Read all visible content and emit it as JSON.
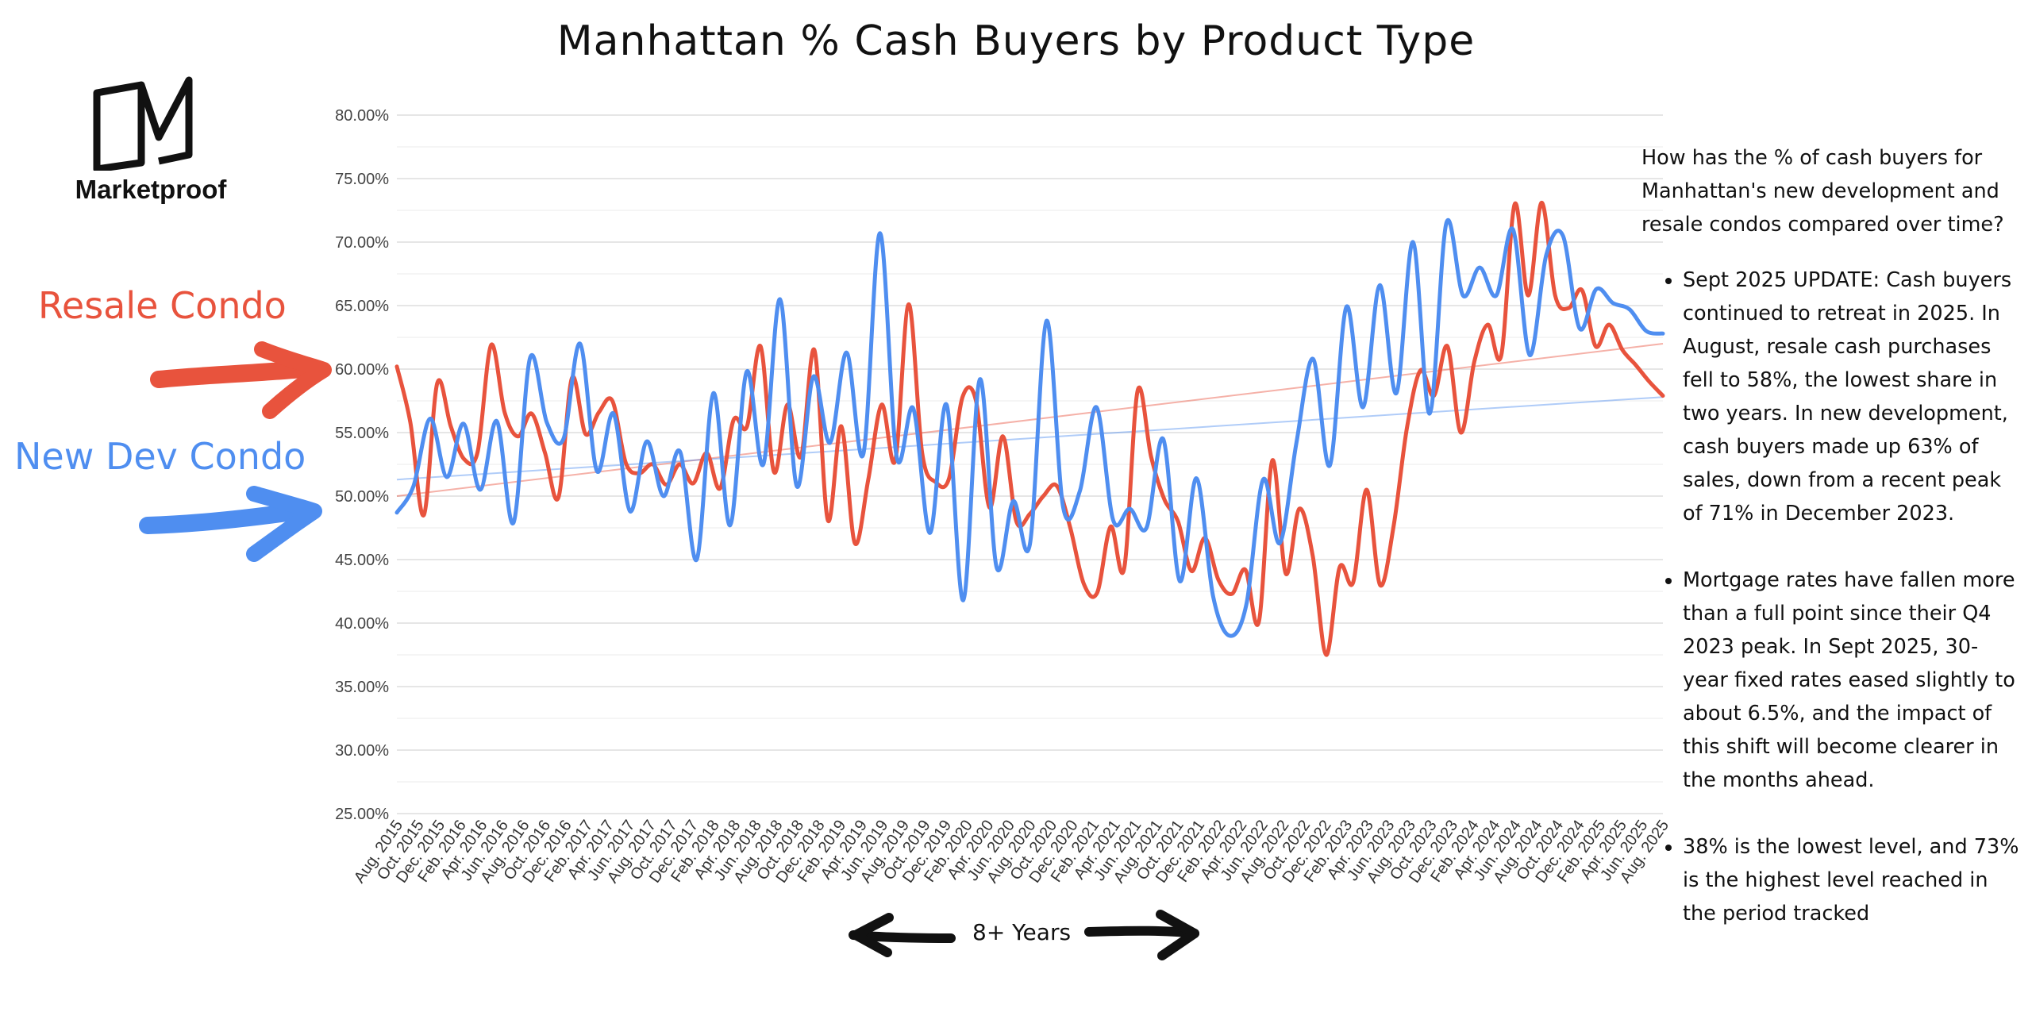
{
  "title": "Manhattan % Cash Buyers by Product Type",
  "logo": {
    "wordmark": "Marketproof"
  },
  "side_labels": {
    "resale": "Resale Condo",
    "new_dev": "New Dev Condo"
  },
  "bottom_label": "8+ Years",
  "notes": {
    "question": "How has the % of cash buyers for Manhattan's new development and resale condos compared over time?",
    "bullets": [
      "Sept 2025 UPDATE: Cash buyers continued to retreat in 2025. In August, resale cash purchases fell to 58%, the lowest share in two years. In new development, cash buyers made up 63% of sales, down from a recent peak of 71% in December 2023.",
      "Mortgage rates have fallen more than a full point since their Q4 2023 peak. In Sept 2025, 30-year fixed rates eased slightly to about 6.5%, and the impact of this shift will become clearer in the months ahead.",
      "38% is the lowest level, and 73% is the highest level reached in the period tracked"
    ]
  },
  "colors": {
    "resale": "#e8533d",
    "new_dev": "#4f8ef0",
    "grid": "#e3e3e3",
    "text": "#111111"
  },
  "chart_data": {
    "type": "line",
    "title": "Manhattan % Cash Buyers by Product Type",
    "xlabel": "",
    "ylabel": "",
    "ylim": [
      25,
      80
    ],
    "y_ticks": [
      25,
      30,
      35,
      40,
      45,
      50,
      55,
      60,
      65,
      70,
      75,
      80
    ],
    "y_tick_labels": [
      "25.00%",
      "30.00%",
      "35.00%",
      "40.00%",
      "45.00%",
      "50.00%",
      "55.00%",
      "60.00%",
      "65.00%",
      "70.00%",
      "75.00%",
      "80.00%"
    ],
    "x_tick_labels": [
      "Aug. 2015",
      "Oct. 2015",
      "Dec. 2015",
      "Feb. 2016",
      "Apr. 2016",
      "Jun. 2016",
      "Aug. 2016",
      "Oct. 2016",
      "Dec. 2016",
      "Feb. 2017",
      "Apr. 2017",
      "Jun. 2017",
      "Aug. 2017",
      "Oct. 2017",
      "Dec. 2017",
      "Feb. 2018",
      "Apr. 2018",
      "Jun. 2018",
      "Aug. 2018",
      "Oct. 2018",
      "Dec. 2018",
      "Feb. 2019",
      "Apr. 2019",
      "Jun. 2019",
      "Aug. 2019",
      "Oct. 2019",
      "Dec. 2019",
      "Feb. 2020",
      "Apr. 2020",
      "Jun. 2020",
      "Aug. 2020",
      "Oct. 2020",
      "Dec. 2020",
      "Feb. 2021",
      "Apr. 2021",
      "Jun. 2021",
      "Aug. 2021",
      "Oct. 2021",
      "Dec. 2021",
      "Feb. 2022",
      "Apr. 2022",
      "Jun. 2022",
      "Aug. 2022",
      "Oct. 2022",
      "Dec. 2022",
      "Feb. 2023",
      "Apr. 2023",
      "Jun. 2023",
      "Aug. 2023",
      "Oct. 2023",
      "Dec. 2023",
      "Feb. 2024",
      "Apr. 2024",
      "Jun. 2024",
      "Aug. 2024",
      "Oct. 2024",
      "Dec. 2024",
      "Feb. 2025",
      "Apr. 2025",
      "Jun. 2025",
      "Aug. 2025"
    ],
    "grid": true,
    "legend": "none",
    "series": [
      {
        "name": "Resale Condo",
        "color": "#e8533d",
        "values": [
          60.2,
          55.8,
          48.5,
          58.9,
          55.5,
          52.9,
          53.5,
          61.9,
          56.6,
          54.7,
          56.5,
          53.4,
          49.9,
          59.3,
          54.9,
          56.6,
          57.5,
          52.6,
          51.8,
          52.5,
          50.9,
          52.5,
          51.0,
          53.4,
          50.6,
          56.0,
          55.5,
          61.8,
          51.9,
          57.2,
          53.1,
          61.5,
          48.1,
          55.5,
          46.3,
          51.3,
          57.2,
          52.8,
          65.1,
          53.4,
          51.1,
          51.4,
          57.8,
          57.5,
          49.1,
          54.7,
          48.0,
          48.6,
          50.0,
          50.8,
          47.5,
          43.1,
          42.4,
          47.6,
          44.3,
          58.3,
          53.1,
          49.7,
          48.0,
          44.1,
          46.7,
          43.4,
          42.3,
          44.2,
          40.1,
          52.8,
          43.9,
          49.0,
          45.3,
          37.5,
          44.4,
          43.2,
          50.5,
          43.0,
          47.6,
          55.4,
          59.9,
          57.9,
          61.8,
          55.0,
          60.6,
          63.5,
          61.1,
          73.0,
          65.8,
          73.1,
          65.8,
          64.8,
          66.2,
          61.8,
          63.5,
          61.5,
          60.3,
          59.0,
          57.9
        ]
      },
      {
        "name": "New Dev Condo",
        "color": "#4f8ef0",
        "values": [
          48.7,
          50.8,
          56.1,
          51.5,
          55.7,
          50.5,
          55.9,
          47.9,
          60.9,
          55.8,
          54.5,
          62.0,
          52.0,
          56.5,
          48.8,
          54.3,
          50.0,
          53.5,
          45.0,
          58.1,
          47.7,
          59.8,
          52.5,
          65.5,
          50.8,
          59.4,
          54.2,
          61.3,
          53.3,
          70.7,
          53.1,
          56.9,
          47.1,
          57.2,
          41.8,
          59.2,
          44.4,
          49.6,
          46.2,
          63.8,
          49.1,
          50.4,
          57.0,
          48.1,
          49.0,
          47.5,
          54.5,
          43.3,
          51.4,
          42.1,
          39.0,
          41.5,
          51.3,
          46.3,
          54.2,
          60.8,
          52.4,
          64.9,
          57.0,
          66.6,
          58.1,
          70.0,
          56.5,
          71.5,
          65.8,
          68.0,
          65.8,
          71.0,
          61.1,
          69.0,
          70.5,
          63.2,
          66.3,
          65.2,
          64.7,
          63.0,
          62.8
        ]
      }
    ],
    "trendlines": [
      {
        "series": "Resale Condo",
        "start": 50.0,
        "end": 62.0
      },
      {
        "series": "New Dev Condo",
        "start": 51.3,
        "end": 57.8
      }
    ]
  }
}
